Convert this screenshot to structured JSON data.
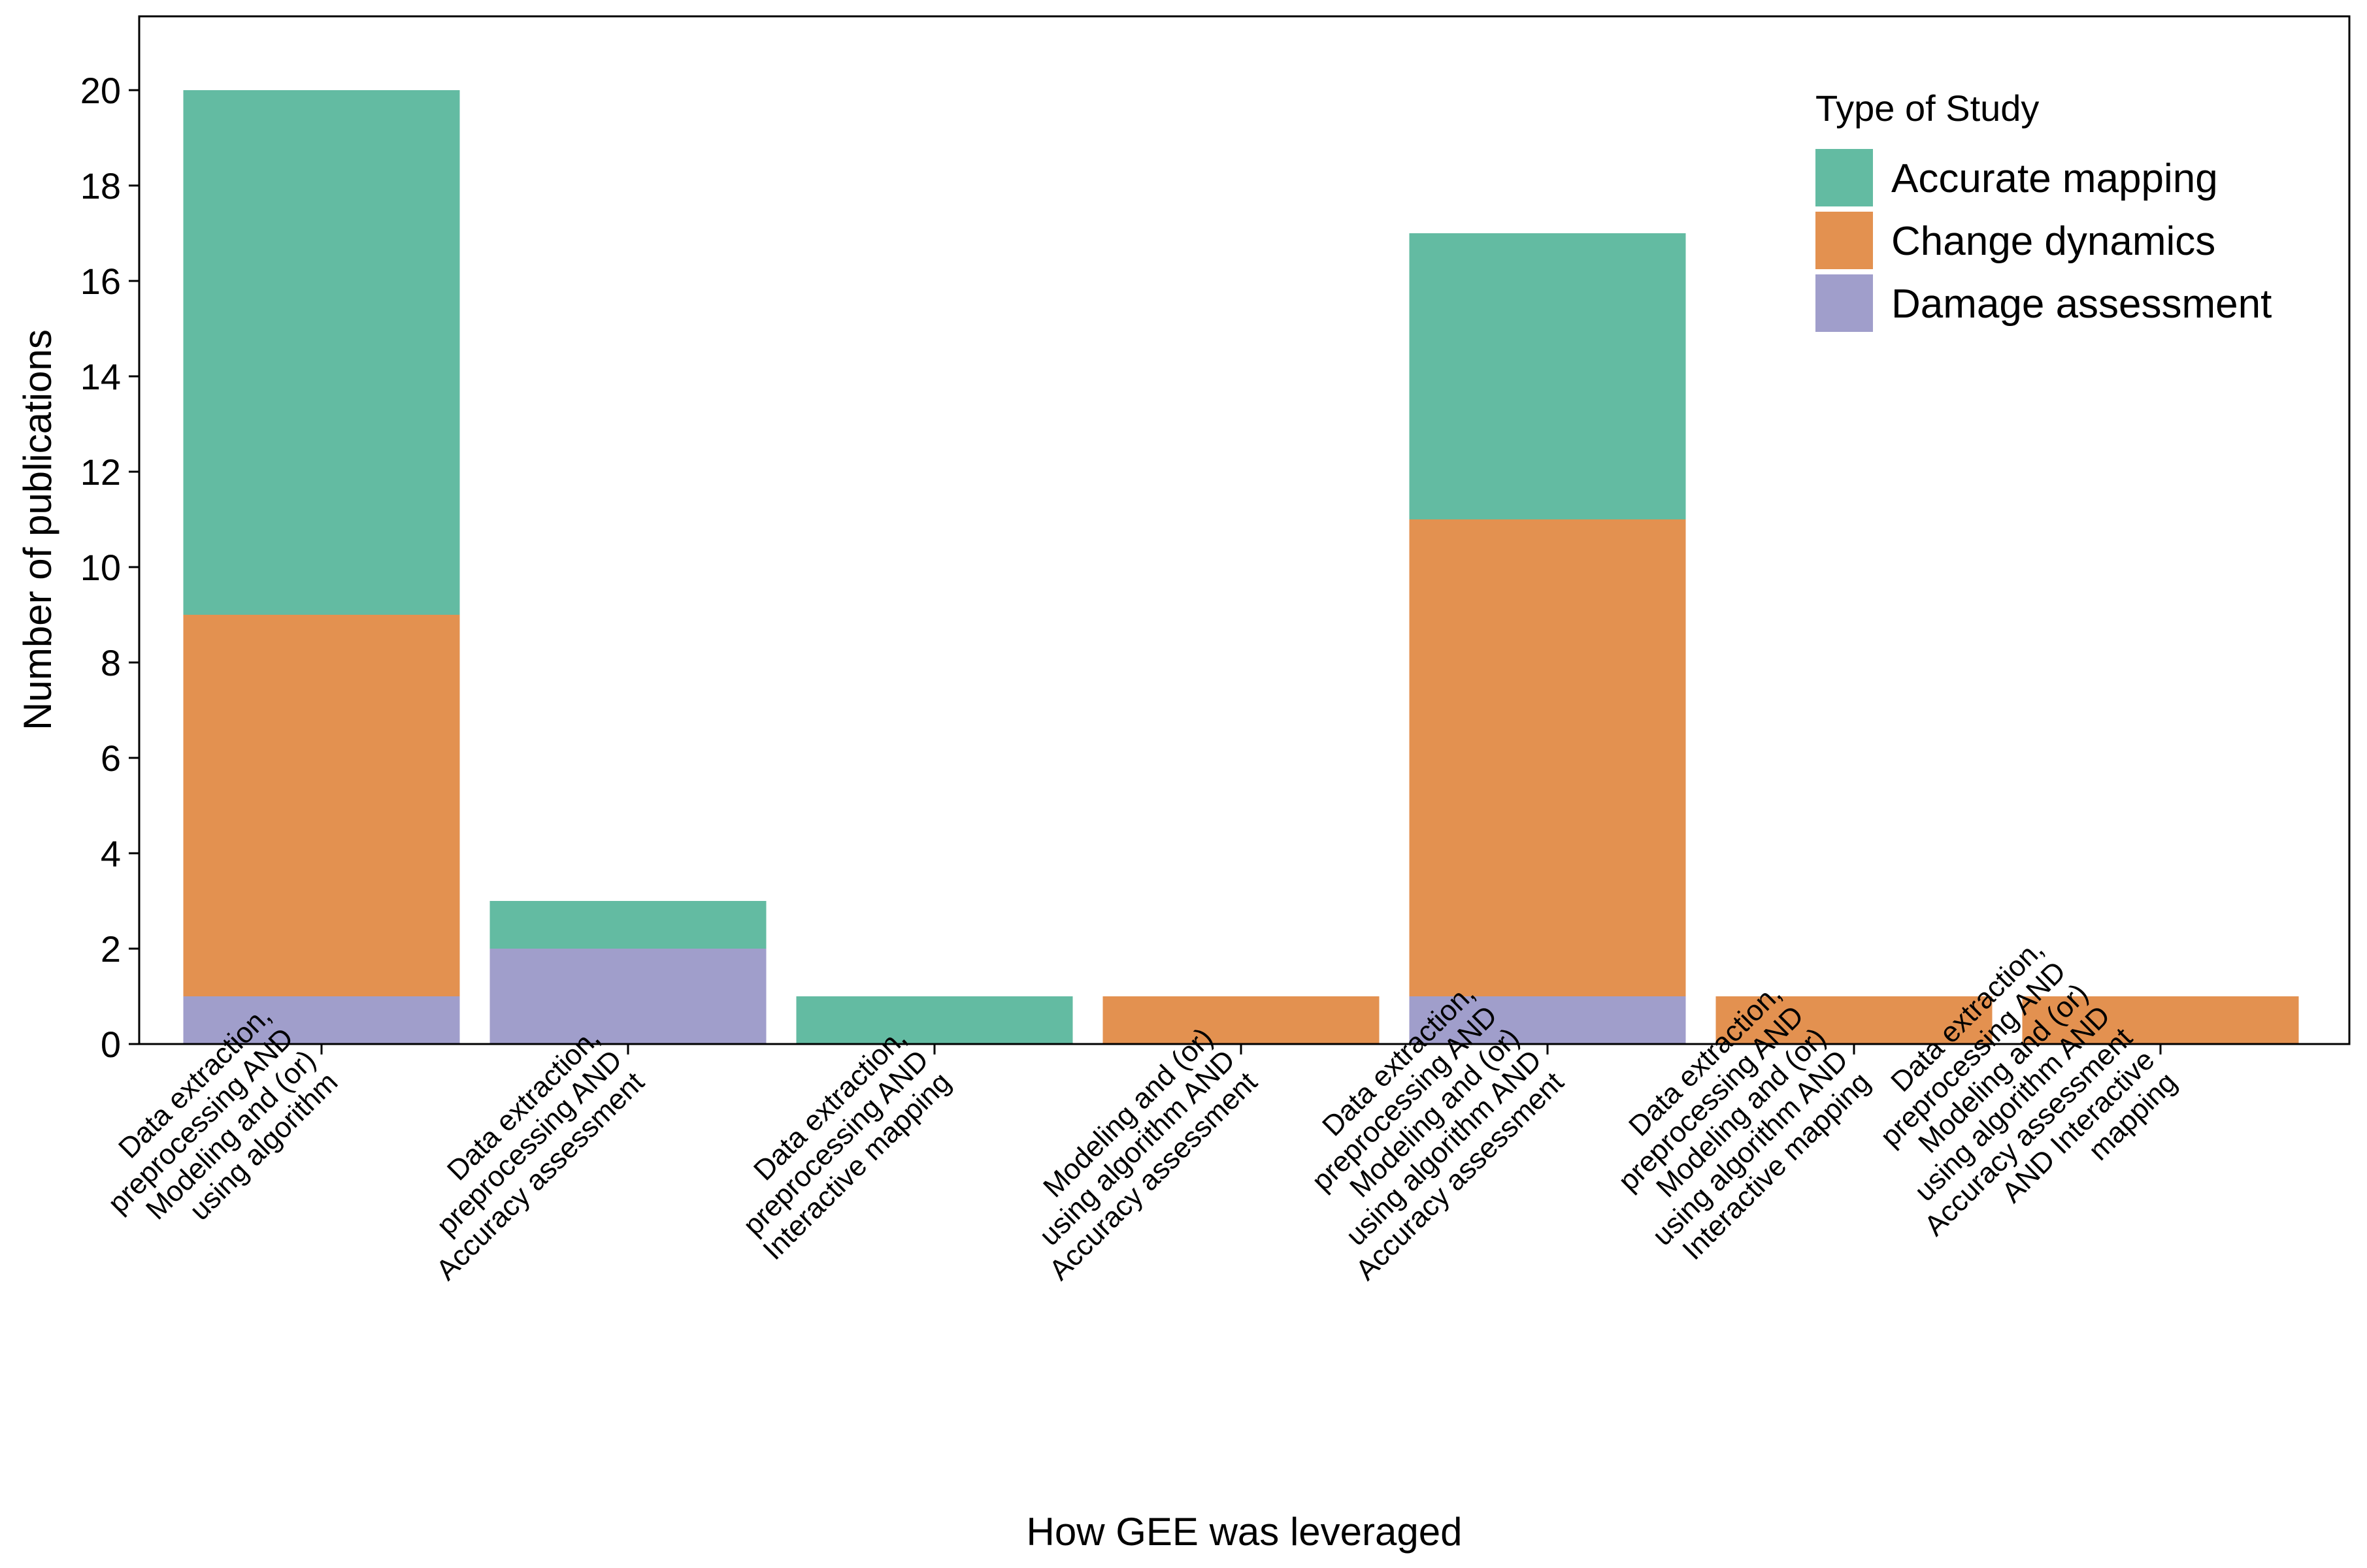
{
  "chart_data": {
    "type": "bar",
    "stacked": true,
    "title": "",
    "xlabel": "How GEE was leveraged",
    "ylabel": "Number of publications",
    "ylim": [
      0,
      21.5
    ],
    "yticks": [
      0,
      2,
      4,
      6,
      8,
      10,
      12,
      14,
      16,
      18,
      20
    ],
    "grid": false,
    "legend": {
      "title": "Type of Study",
      "placement": "top-right"
    },
    "categories": [
      [
        "Data extraction,",
        "preprocessing AND",
        "Modeling and (or)",
        "using algorithm"
      ],
      [
        "Data extraction,",
        "preprocessing AND",
        "Accuracy assessment"
      ],
      [
        "Data extraction,",
        "preprocessing AND",
        "Interactive mapping"
      ],
      [
        "Modeling and (or)",
        "using algorithm AND",
        "Accuracy assessment"
      ],
      [
        "Data extraction,",
        "preprocessing AND",
        "Modeling and (or)",
        "using algorithm AND",
        "Accuracy assessment"
      ],
      [
        "Data extraction,",
        "preprocessing AND",
        "Modeling and (or)",
        "using algorithm AND",
        "Interactive mapping"
      ],
      [
        "Data extraction,",
        "preprocessing AND",
        "Modeling and (or)",
        "using algorithm AND",
        "Accuracy assessment",
        "AND Interactive",
        "mapping"
      ]
    ],
    "series": [
      {
        "name": "Damage assessment",
        "color": "#a09ecb",
        "values": [
          1,
          2,
          0,
          0,
          1,
          0,
          0
        ]
      },
      {
        "name": "Change dynamics",
        "color": "#e39150",
        "values": [
          8,
          0,
          0,
          1,
          10,
          1,
          1
        ]
      },
      {
        "name": "Accurate mapping",
        "color": "#63bba2",
        "values": [
          11,
          1,
          1,
          0,
          6,
          0,
          0
        ]
      }
    ],
    "legend_order": [
      "Accurate mapping",
      "Change dynamics",
      "Damage assessment"
    ]
  }
}
